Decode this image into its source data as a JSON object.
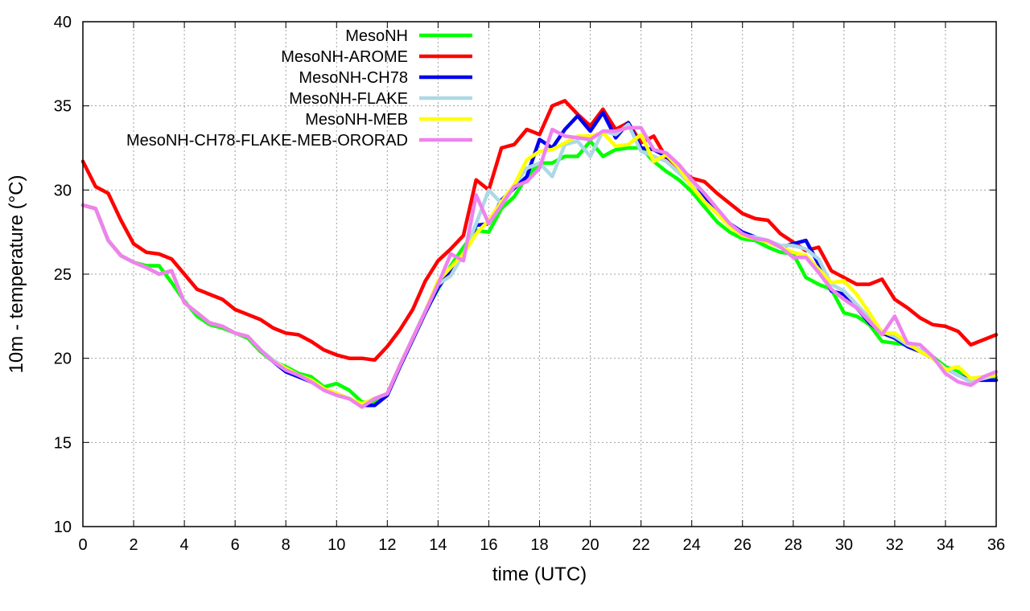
{
  "chart_data": {
    "type": "line",
    "xlabel": "time (UTC)",
    "ylabel": "10m - temperature (°C)",
    "xlim": [
      0,
      36
    ],
    "ylim": [
      10,
      40
    ],
    "xticks": [
      0,
      2,
      4,
      6,
      8,
      10,
      12,
      14,
      16,
      18,
      20,
      22,
      24,
      26,
      28,
      30,
      32,
      34,
      36
    ],
    "yticks": [
      10,
      15,
      20,
      25,
      30,
      35,
      40
    ],
    "grid": true,
    "legend_position": "top-left",
    "series": [
      {
        "name": "MesoNH",
        "color": "#00ff00",
        "x": [
          0,
          0.5,
          1,
          1.5,
          2,
          2.5,
          3,
          3.5,
          4,
          4.5,
          5,
          5.5,
          6,
          6.5,
          7,
          7.5,
          8,
          8.5,
          9,
          9.5,
          10,
          10.5,
          11,
          11.5,
          12,
          12.5,
          13,
          13.5,
          14,
          14.5,
          15,
          15.5,
          16,
          16.5,
          17,
          17.5,
          18,
          18.5,
          19,
          19.5,
          20,
          20.5,
          21,
          21.5,
          22,
          22.5,
          23,
          23.5,
          24,
          24.5,
          25,
          25.5,
          26,
          26.5,
          27,
          27.5,
          28,
          28.5,
          29,
          29.5,
          30,
          30.5,
          31,
          31.5,
          32,
          32.5,
          33,
          33.5,
          34,
          34.5,
          35,
          35.5,
          36
        ],
        "y": [
          29.1,
          28.9,
          27.0,
          26.1,
          25.7,
          25.5,
          25.5,
          24.5,
          23.4,
          22.5,
          22.0,
          21.8,
          21.5,
          21.2,
          20.4,
          19.8,
          19.5,
          19.1,
          18.9,
          18.3,
          18.5,
          18.1,
          17.4,
          17.4,
          17.8,
          19.6,
          21.2,
          22.8,
          24.1,
          25.5,
          26.6,
          27.6,
          27.5,
          28.9,
          29.6,
          30.8,
          31.6,
          31.6,
          32.0,
          32.0,
          32.9,
          32.0,
          32.4,
          32.5,
          32.5,
          31.7,
          31.1,
          30.6,
          29.9,
          29.0,
          28.1,
          27.5,
          27.1,
          27.0,
          26.6,
          26.3,
          26.2,
          24.8,
          24.4,
          24.1,
          22.7,
          22.5,
          22.0,
          21.0,
          20.9,
          20.8,
          20.5,
          20.1,
          19.5,
          19.2,
          18.8,
          18.9,
          18.9
        ]
      },
      {
        "name": "MesoNH-AROME",
        "color": "#ff0000",
        "x": [
          0,
          0.5,
          1,
          1.5,
          2,
          2.5,
          3,
          3.5,
          4,
          4.5,
          5,
          5.5,
          6,
          6.5,
          7,
          7.5,
          8,
          8.5,
          9,
          9.5,
          10,
          10.5,
          11,
          11.5,
          12,
          12.5,
          13,
          13.5,
          14,
          14.5,
          15,
          15.5,
          16,
          16.5,
          17,
          17.5,
          18,
          18.5,
          19,
          19.5,
          20,
          20.5,
          21,
          21.5,
          22,
          22.5,
          23,
          23.5,
          24,
          24.5,
          25,
          25.5,
          26,
          26.5,
          27,
          27.5,
          28,
          28.5,
          29,
          29.5,
          30,
          30.5,
          31,
          31.5,
          32,
          32.5,
          33,
          33.5,
          34,
          34.5,
          35,
          35.5,
          36
        ],
        "y": [
          31.7,
          30.2,
          29.8,
          28.2,
          26.8,
          26.3,
          26.2,
          25.9,
          25.0,
          24.1,
          23.8,
          23.5,
          22.9,
          22.6,
          22.3,
          21.8,
          21.5,
          21.4,
          21.0,
          20.5,
          20.2,
          20.0,
          20.0,
          19.9,
          20.7,
          21.7,
          22.9,
          24.6,
          25.8,
          26.5,
          27.3,
          30.6,
          30.0,
          32.5,
          32.7,
          33.6,
          33.3,
          35.0,
          35.3,
          34.5,
          33.8,
          34.8,
          33.6,
          34.0,
          32.8,
          33.2,
          31.9,
          31.3,
          30.7,
          30.5,
          29.8,
          29.2,
          28.6,
          28.3,
          28.2,
          27.4,
          26.9,
          26.4,
          26.6,
          25.2,
          24.8,
          24.4,
          24.4,
          24.7,
          23.5,
          23.0,
          22.4,
          22.0,
          21.9,
          21.6,
          20.8,
          21.1,
          21.4
        ]
      },
      {
        "name": "MesoNH-CH78",
        "color": "#0000ee",
        "x": [
          0,
          0.5,
          1,
          1.5,
          2,
          2.5,
          3,
          3.5,
          4,
          4.5,
          5,
          5.5,
          6,
          6.5,
          7,
          7.5,
          8,
          8.5,
          9,
          9.5,
          10,
          10.5,
          11,
          11.5,
          12,
          12.5,
          13,
          13.5,
          14,
          14.5,
          15,
          15.5,
          16,
          16.5,
          17,
          17.5,
          18,
          18.5,
          19,
          19.5,
          20,
          20.5,
          21,
          21.5,
          22,
          22.5,
          23,
          23.5,
          24,
          24.5,
          25,
          25.5,
          26,
          26.5,
          27,
          27.5,
          28,
          28.5,
          29,
          29.5,
          30,
          30.5,
          31,
          31.5,
          32,
          32.5,
          33,
          33.5,
          34,
          34.5,
          35,
          35.5,
          36
        ],
        "y": [
          29.1,
          28.9,
          27.0,
          26.1,
          25.7,
          25.4,
          25.0,
          25.2,
          23.3,
          22.7,
          22.1,
          21.9,
          21.5,
          21.3,
          20.5,
          19.8,
          19.2,
          18.9,
          18.6,
          18.2,
          17.9,
          17.6,
          17.2,
          17.2,
          17.8,
          19.5,
          21.1,
          22.7,
          24.2,
          25.2,
          26.1,
          27.9,
          28.0,
          29.4,
          30.1,
          30.8,
          33.0,
          32.5,
          33.6,
          34.4,
          33.5,
          34.6,
          33.1,
          34.0,
          32.5,
          32.4,
          32.0,
          31.4,
          30.2,
          29.6,
          28.8,
          28.0,
          27.5,
          27.2,
          26.9,
          26.6,
          26.8,
          27.0,
          25.6,
          24.0,
          23.8,
          23.0,
          22.1,
          21.5,
          21.2,
          20.7,
          20.4,
          20.0,
          19.4,
          19.0,
          18.7,
          18.7,
          18.7
        ]
      },
      {
        "name": "MesoNH-FLAKE",
        "color": "#add8e6",
        "x": [
          0,
          0.5,
          1,
          1.5,
          2,
          2.5,
          3,
          3.5,
          4,
          4.5,
          5,
          5.5,
          6,
          6.5,
          7,
          7.5,
          8,
          8.5,
          9,
          9.5,
          10,
          10.5,
          11,
          11.5,
          12,
          12.5,
          13,
          13.5,
          14,
          14.5,
          15,
          15.5,
          16,
          16.5,
          17,
          17.5,
          18,
          18.5,
          19,
          19.5,
          20,
          20.5,
          21,
          21.5,
          22,
          22.5,
          23,
          23.5,
          24,
          24.5,
          25,
          25.5,
          26,
          26.5,
          27,
          27.5,
          28,
          28.5,
          29,
          29.5,
          30,
          30.5,
          31,
          31.5,
          32,
          32.5,
          33,
          33.5,
          34,
          34.5,
          35,
          35.5,
          36
        ],
        "y": [
          29.1,
          28.9,
          27.0,
          26.1,
          25.7,
          25.4,
          25.0,
          25.2,
          23.3,
          22.7,
          22.1,
          21.9,
          21.5,
          21.3,
          20.5,
          19.9,
          19.4,
          19.0,
          18.7,
          18.2,
          17.9,
          17.6,
          17.3,
          17.6,
          17.9,
          19.6,
          21.2,
          22.8,
          24.4,
          24.9,
          26.2,
          28.0,
          30.0,
          29.2,
          30.3,
          31.3,
          31.6,
          30.8,
          32.7,
          32.9,
          32.0,
          33.5,
          33.3,
          33.9,
          32.3,
          32.0,
          31.7,
          31.0,
          30.3,
          29.3,
          28.6,
          28.0,
          27.3,
          27.2,
          27.0,
          26.7,
          26.7,
          26.5,
          25.9,
          24.4,
          24.0,
          23.2,
          22.4,
          21.6,
          21.3,
          20.8,
          20.5,
          20.0,
          19.4,
          19.0,
          18.6,
          18.8,
          19.0
        ]
      },
      {
        "name": "MesoNH-MEB",
        "color": "#ffff00",
        "x": [
          0,
          0.5,
          1,
          1.5,
          2,
          2.5,
          3,
          3.5,
          4,
          4.5,
          5,
          5.5,
          6,
          6.5,
          7,
          7.5,
          8,
          8.5,
          9,
          9.5,
          10,
          10.5,
          11,
          11.5,
          12,
          12.5,
          13,
          13.5,
          14,
          14.5,
          15,
          15.5,
          16,
          16.5,
          17,
          17.5,
          18,
          18.5,
          19,
          19.5,
          20,
          20.5,
          21,
          21.5,
          22,
          22.5,
          23,
          23.5,
          24,
          24.5,
          25,
          25.5,
          26,
          26.5,
          27,
          27.5,
          28,
          28.5,
          29,
          29.5,
          30,
          30.5,
          31,
          31.5,
          32,
          32.5,
          33,
          33.5,
          34,
          34.5,
          35,
          35.5,
          36
        ],
        "y": [
          29.1,
          28.9,
          27.0,
          26.1,
          25.7,
          25.4,
          25.0,
          25.2,
          23.3,
          22.7,
          22.1,
          21.9,
          21.5,
          21.3,
          20.5,
          19.8,
          19.4,
          19.0,
          18.7,
          18.2,
          17.9,
          17.6,
          17.3,
          17.6,
          17.9,
          19.6,
          21.2,
          22.8,
          24.6,
          25.4,
          26.2,
          27.4,
          28.2,
          29.3,
          30.3,
          31.8,
          32.3,
          32.4,
          32.8,
          33.2,
          33.2,
          33.4,
          32.6,
          32.7,
          33.3,
          31.7,
          32.1,
          31.3,
          30.2,
          29.3,
          28.6,
          27.8,
          27.3,
          27.1,
          26.9,
          26.6,
          26.3,
          26.1,
          25.3,
          24.5,
          24.6,
          23.8,
          22.7,
          21.5,
          21.5,
          20.9,
          20.4,
          20.0,
          19.3,
          19.5,
          18.8,
          18.9,
          19.0
        ]
      },
      {
        "name": "MesoNH-CH78-FLAKE-MEB-ORORAD",
        "color": "#ee82ee",
        "x": [
          0,
          0.5,
          1,
          1.5,
          2,
          2.5,
          3,
          3.5,
          4,
          4.5,
          5,
          5.5,
          6,
          6.5,
          7,
          7.5,
          8,
          8.5,
          9,
          9.5,
          10,
          10.5,
          11,
          11.5,
          12,
          12.5,
          13,
          13.5,
          14,
          14.5,
          15,
          15.5,
          16,
          16.5,
          17,
          17.5,
          18,
          18.5,
          19,
          19.5,
          20,
          20.5,
          21,
          21.5,
          22,
          22.5,
          23,
          23.5,
          24,
          24.5,
          25,
          25.5,
          26,
          26.5,
          27,
          27.5,
          28,
          28.5,
          29,
          29.5,
          30,
          30.5,
          31,
          31.5,
          32,
          32.5,
          33,
          33.5,
          34,
          34.5,
          35,
          35.5,
          36
        ],
        "y": [
          29.1,
          28.9,
          27.0,
          26.1,
          25.7,
          25.4,
          25.0,
          25.2,
          23.3,
          22.7,
          22.1,
          21.9,
          21.5,
          21.3,
          20.5,
          19.8,
          19.3,
          19.0,
          18.6,
          18.1,
          17.8,
          17.6,
          17.1,
          17.6,
          17.9,
          19.6,
          21.2,
          22.8,
          24.4,
          26.2,
          25.8,
          29.7,
          28.0,
          29.1,
          30.2,
          30.5,
          31.3,
          33.6,
          33.2,
          33.1,
          33.0,
          33.5,
          33.5,
          33.7,
          33.7,
          32.4,
          32.2,
          31.5,
          30.6,
          29.8,
          28.9,
          28.0,
          27.4,
          27.1,
          27.0,
          26.6,
          26.0,
          26.0,
          25.1,
          24.1,
          23.5,
          23.0,
          22.2,
          21.4,
          22.5,
          20.9,
          20.8,
          20.1,
          19.1,
          18.6,
          18.4,
          18.9,
          19.2
        ]
      }
    ]
  }
}
